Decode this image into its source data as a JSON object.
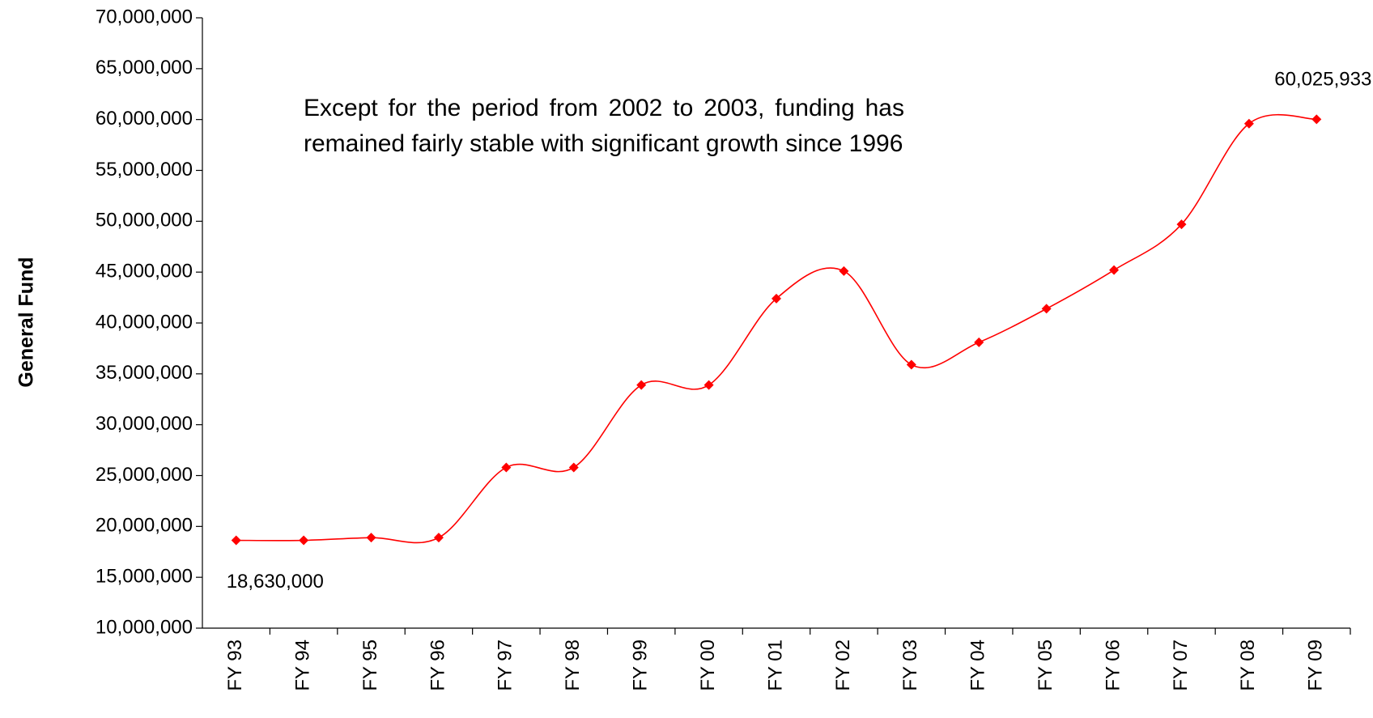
{
  "chart_data": {
    "type": "line",
    "y_label": "General Fund",
    "annotation": "Except for the period from 2002 to 2003, funding has remained fairly stable with significant growth since 1996",
    "categories": [
      "FY 93",
      "FY 94",
      "FY 95",
      "FY 96",
      "FY 97",
      "FY 98",
      "FY 99",
      "FY 00",
      "FY 01",
      "FY 02",
      "FY 03",
      "FY 04",
      "FY 05",
      "FY 06",
      "FY 07",
      "FY 08",
      "FY 09"
    ],
    "series": [
      {
        "name": "General Fund",
        "color": "#ff0000",
        "values": [
          18630000,
          18630000,
          18900000,
          18900000,
          25800000,
          25800000,
          33900000,
          33900000,
          42400000,
          45100000,
          35900000,
          38100000,
          41400000,
          45200000,
          49700000,
          59600000,
          60025933
        ],
        "value_labels": [
          "18,630,000",
          null,
          null,
          null,
          null,
          null,
          null,
          null,
          null,
          null,
          null,
          null,
          null,
          null,
          null,
          null,
          "60,025,933"
        ]
      }
    ],
    "ylim": [
      10000000,
      70000000
    ],
    "yticks": [
      {
        "value": 10000000,
        "label": "10,000,000"
      },
      {
        "value": 15000000,
        "label": "15,000,000"
      },
      {
        "value": 20000000,
        "label": "20,000,000"
      },
      {
        "value": 25000000,
        "label": "25,000,000"
      },
      {
        "value": 30000000,
        "label": "30,000,000"
      },
      {
        "value": 35000000,
        "label": "35,000,000"
      },
      {
        "value": 40000000,
        "label": "40,000,000"
      },
      {
        "value": 45000000,
        "label": "45,000,000"
      },
      {
        "value": 50000000,
        "label": "50,000,000"
      },
      {
        "value": 55000000,
        "label": "55,000,000"
      },
      {
        "value": 60000000,
        "label": "60,000,000"
      },
      {
        "value": 65000000,
        "label": "65,000,000"
      },
      {
        "value": 70000000,
        "label": "70,000,000"
      }
    ],
    "grid": false,
    "smooth": true
  }
}
